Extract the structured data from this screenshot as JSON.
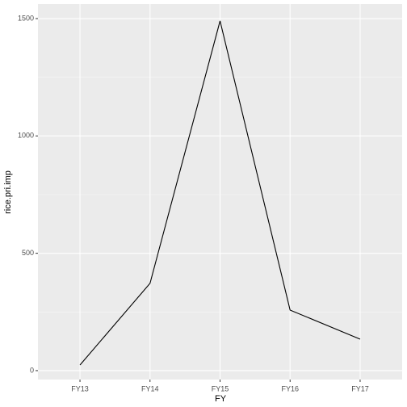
{
  "chart_data": {
    "type": "line",
    "x_label": "FY",
    "y_label": "rice.pri.imp",
    "categories": [
      "FY13",
      "FY14",
      "FY15",
      "FY16",
      "FY17"
    ],
    "values": [
      24,
      372,
      1490,
      258,
      134
    ],
    "color": "#000000",
    "ylim": [
      -38,
      1562
    ],
    "yticks": [
      0,
      500,
      1000,
      1500
    ],
    "grid": true
  }
}
